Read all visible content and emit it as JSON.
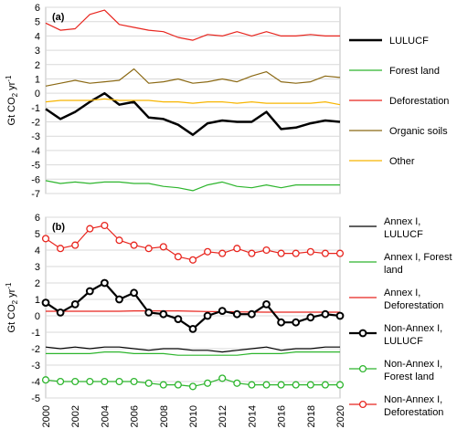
{
  "chart_data": [
    {
      "type": "line",
      "panel_label": "(a)",
      "ylabel": "Gt CO",
      "ylabel_sub": "2",
      "ylabel_unit": " yr",
      "ylabel_sup": "-1",
      "ylim": [
        -7,
        6
      ],
      "y_ticks": [
        -7,
        -6,
        -5,
        -4,
        -3,
        -2,
        -1,
        0,
        1,
        2,
        3,
        4,
        5,
        6
      ],
      "grid": true,
      "legend_position": "right",
      "x": [
        2000,
        2001,
        2002,
        2003,
        2004,
        2005,
        2006,
        2007,
        2008,
        2009,
        2010,
        2011,
        2012,
        2013,
        2014,
        2015,
        2016,
        2017,
        2018,
        2019,
        2020
      ],
      "series": [
        {
          "name": "LULUCF",
          "color": "#000000",
          "width": 2.5,
          "marker": false,
          "values": [
            -1.1,
            -1.8,
            -1.3,
            -0.6,
            0.0,
            -0.8,
            -0.6,
            -1.7,
            -1.8,
            -2.2,
            -2.9,
            -2.1,
            -1.9,
            -2.0,
            -2.0,
            -1.3,
            -2.5,
            -2.4,
            -2.1,
            -1.9,
            -2.0
          ]
        },
        {
          "name": "Forest land",
          "color": "#2db52d",
          "width": 1.2,
          "marker": false,
          "values": [
            -6.1,
            -6.3,
            -6.2,
            -6.3,
            -6.2,
            -6.2,
            -6.3,
            -6.3,
            -6.5,
            -6.6,
            -6.8,
            -6.4,
            -6.2,
            -6.5,
            -6.6,
            -6.4,
            -6.6,
            -6.4,
            -6.4,
            -6.4,
            -6.4
          ]
        },
        {
          "name": "Deforestation",
          "color": "#e8251e",
          "width": 1.2,
          "marker": false,
          "values": [
            4.9,
            4.4,
            4.5,
            5.5,
            5.8,
            4.8,
            4.6,
            4.4,
            4.3,
            3.9,
            3.7,
            4.1,
            4.0,
            4.3,
            4.0,
            4.3,
            4.0,
            4.0,
            4.1,
            4.0,
            4.0
          ]
        },
        {
          "name": "Organic soils",
          "color": "#8b6914",
          "width": 1.2,
          "marker": false,
          "values": [
            0.5,
            0.7,
            0.9,
            0.7,
            0.8,
            0.9,
            1.7,
            0.7,
            0.8,
            1.0,
            0.7,
            0.8,
            1.0,
            0.8,
            1.2,
            1.5,
            0.8,
            0.7,
            0.8,
            1.2,
            1.1
          ]
        },
        {
          "name": "Other",
          "color": "#f7b500",
          "width": 1.2,
          "marker": false,
          "values": [
            -0.6,
            -0.5,
            -0.5,
            -0.5,
            -0.4,
            -0.5,
            -0.5,
            -0.5,
            -0.6,
            -0.6,
            -0.7,
            -0.6,
            -0.6,
            -0.7,
            -0.6,
            -0.7,
            -0.7,
            -0.7,
            -0.7,
            -0.6,
            -0.8
          ]
        }
      ],
      "legend": [
        {
          "label": "LULUCF"
        },
        {
          "label": "Forest land"
        },
        {
          "label": "Deforestation"
        },
        {
          "label": "Organic soils"
        },
        {
          "label": "Other"
        }
      ]
    },
    {
      "type": "line",
      "panel_label": "(b)",
      "ylabel": "Gt CO",
      "ylabel_sub": "2",
      "ylabel_unit": " yr",
      "ylabel_sup": "-1",
      "ylim": [
        -5,
        6
      ],
      "y_ticks": [
        -5,
        -4,
        -3,
        -2,
        -1,
        0,
        1,
        2,
        3,
        4,
        5,
        6
      ],
      "grid": true,
      "legend_position": "right",
      "x": [
        2000,
        2001,
        2002,
        2003,
        2004,
        2005,
        2006,
        2007,
        2008,
        2009,
        2010,
        2011,
        2012,
        2013,
        2014,
        2015,
        2016,
        2017,
        2018,
        2019,
        2020
      ],
      "x_ticks": [
        "2000",
        "2002",
        "2004",
        "2006",
        "2008",
        "2010",
        "2012",
        "2014",
        "2016",
        "2018",
        "2020"
      ],
      "series": [
        {
          "name": "Annex I, LULUCF",
          "color": "#000000",
          "width": 1.2,
          "marker": false,
          "values": [
            -1.9,
            -2.0,
            -1.9,
            -2.0,
            -1.9,
            -1.9,
            -2.0,
            -2.1,
            -2.0,
            -2.0,
            -2.1,
            -2.1,
            -2.2,
            -2.1,
            -2.0,
            -1.9,
            -2.1,
            -2.0,
            -2.0,
            -1.9,
            -1.9
          ]
        },
        {
          "name": "Annex I, Forest land",
          "color": "#2db52d",
          "width": 1.2,
          "marker": false,
          "values": [
            -2.3,
            -2.3,
            -2.3,
            -2.3,
            -2.2,
            -2.2,
            -2.3,
            -2.3,
            -2.3,
            -2.4,
            -2.4,
            -2.4,
            -2.4,
            -2.4,
            -2.3,
            -2.3,
            -2.3,
            -2.2,
            -2.2,
            -2.2,
            -2.2
          ]
        },
        {
          "name": "Annex I, Deforestation",
          "color": "#e8251e",
          "width": 1.2,
          "marker": false,
          "values": [
            0.28,
            0.28,
            0.28,
            0.28,
            0.28,
            0.28,
            0.3,
            0.3,
            0.3,
            0.3,
            0.28,
            0.26,
            0.25,
            0.24,
            0.23,
            0.22,
            0.22,
            0.22,
            0.22,
            0.22,
            0.22
          ]
        },
        {
          "name": "Non-Annex I, LULUCF",
          "color": "#000000",
          "width": 2.2,
          "marker": true,
          "values": [
            0.8,
            0.2,
            0.7,
            1.5,
            2.0,
            1.0,
            1.4,
            0.2,
            0.1,
            -0.2,
            -0.8,
            0.0,
            0.3,
            0.1,
            0.1,
            0.7,
            -0.4,
            -0.4,
            -0.1,
            0.1,
            0.0
          ]
        },
        {
          "name": "Non-Annex I, Forest land",
          "color": "#2db52d",
          "width": 1.2,
          "marker": true,
          "values": [
            -3.9,
            -4.0,
            -4.0,
            -4.0,
            -4.0,
            -4.0,
            -4.0,
            -4.1,
            -4.2,
            -4.2,
            -4.3,
            -4.1,
            -3.8,
            -4.1,
            -4.2,
            -4.2,
            -4.2,
            -4.2,
            -4.2,
            -4.2,
            -4.2
          ]
        },
        {
          "name": "Non-Annex I, Deforestation",
          "color": "#e8251e",
          "width": 1.2,
          "marker": true,
          "values": [
            4.7,
            4.1,
            4.3,
            5.3,
            5.5,
            4.6,
            4.3,
            4.1,
            4.2,
            3.6,
            3.4,
            3.9,
            3.8,
            4.1,
            3.8,
            4.0,
            3.8,
            3.8,
            3.9,
            3.8,
            3.8
          ]
        }
      ],
      "legend": [
        {
          "label": "Annex I,",
          "label2": "LULUCF"
        },
        {
          "label": "Annex I, Forest",
          "label2": "land"
        },
        {
          "label": "Annex I,",
          "label2": "Deforestation"
        },
        {
          "label": "Non-Annex I,",
          "label2": "LULUCF"
        },
        {
          "label": "Non-Annex I,",
          "label2": "Forest land"
        },
        {
          "label": "Non-Annex I,",
          "label2": "Deforestation"
        }
      ]
    }
  ]
}
